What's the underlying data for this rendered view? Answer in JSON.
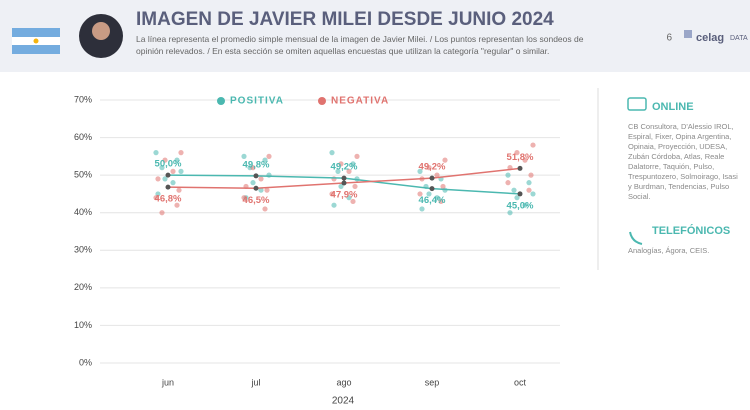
{
  "header": {
    "title": "IMAGEN DE JAVIER MILEI DESDE JUNIO 2024",
    "subtitle": "La línea representa el promedio simple mensual de la imagen de Javier Milei. / Los puntos representan los sondeos de opinión relevados. / En esta sección se omiten aquellas encuestas que utilizan la categoría \"regular\" o similar.",
    "page": "6",
    "logo": "celag",
    "logo_suffix": "DATA"
  },
  "chart_data": {
    "type": "line",
    "categories": [
      "jun",
      "jul",
      "ago",
      "sep",
      "oct"
    ],
    "x_label": "2024",
    "ylim": [
      0,
      70
    ],
    "yticks": [
      {
        "value": 0,
        "label": "0%"
      },
      {
        "value": 10,
        "label": "10%"
      },
      {
        "value": 20,
        "label": "20%"
      },
      {
        "value": 30,
        "label": "30%"
      },
      {
        "value": 40,
        "label": "40%"
      },
      {
        "value": 50,
        "label": "50%"
      },
      {
        "value": 60,
        "label": "60%"
      },
      {
        "value": 70,
        "label": "70%"
      }
    ],
    "grid": true,
    "series": [
      {
        "name": "POSITIVA",
        "color": "#4bb8b0",
        "values": [
          50.0,
          49.8,
          49.2,
          46.4,
          45.0
        ],
        "value_labels": [
          "50,0%",
          "49,8%",
          "49,2%",
          "46,4%",
          "45,0%"
        ],
        "polls": [
          [
            56,
            54,
            52,
            51,
            49,
            48,
            45
          ],
          [
            55,
            54,
            52,
            50,
            48,
            46,
            44
          ],
          [
            56,
            53,
            51,
            49,
            47,
            44,
            42
          ],
          [
            51,
            49,
            47,
            46,
            45,
            44,
            41
          ],
          [
            50,
            48,
            46,
            45,
            44,
            42,
            40
          ]
        ]
      },
      {
        "name": "NEGATIVA",
        "color": "#e0736f",
        "values": [
          46.8,
          46.5,
          47.9,
          49.2,
          51.8
        ],
        "value_labels": [
          "46,8%",
          "46,5%",
          "47,9%",
          "49,2%",
          "51,8%"
        ],
        "polls": [
          [
            56,
            54,
            51,
            49,
            46,
            44,
            42,
            40
          ],
          [
            55,
            52,
            49,
            47,
            46,
            44,
            41
          ],
          [
            55,
            53,
            51,
            49,
            47,
            45,
            43
          ],
          [
            54,
            52,
            50,
            49,
            47,
            45,
            43
          ],
          [
            58,
            56,
            54,
            52,
            50,
            48,
            46
          ]
        ]
      }
    ]
  },
  "sidebar": {
    "online_title": "ONLINE",
    "online_list": "CB Consultora, D'Alessio IROL, Espiral, Fixer, Opina Argentina, Opinaia, Proyección, UDESA, Zubán Córdoba, Atlas, Reale Dalatorre, Taquión, Pulso, Trespuntozero, Solmoirago, Isasi y Burdman, Tendencias, Pulso Social.",
    "phone_title": "TELEFÓNICOS",
    "phone_list": "Analogías, Ágora, CEIS."
  }
}
